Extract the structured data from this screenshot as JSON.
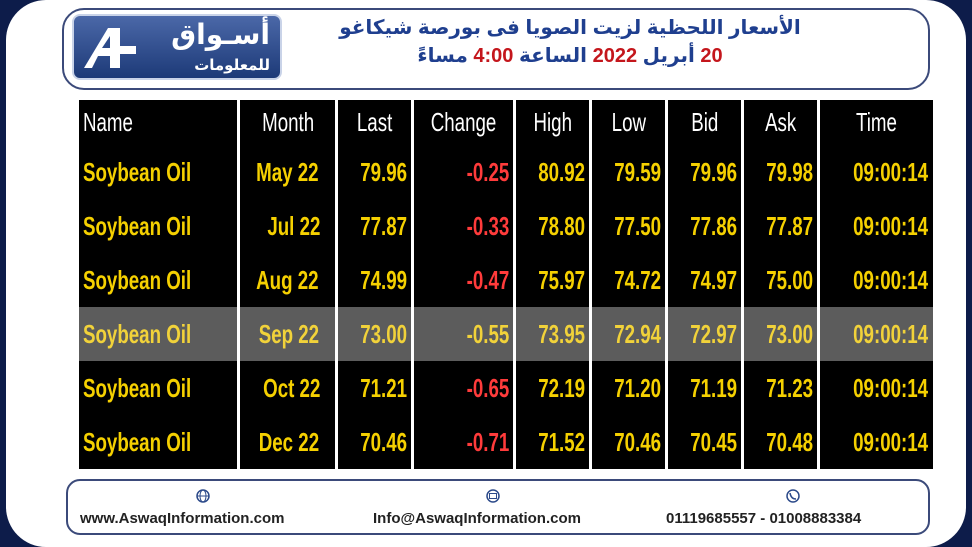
{
  "header": {
    "logo_title": "أسـواق",
    "logo_subtitle": "للمعلومات",
    "title": "الأسعار اللحظية لزيت الصويا فى بورصة شيكاغو",
    "subtitle": [
      "20",
      "أبريل",
      "2022",
      "الساعة",
      "4:00",
      "مساءً"
    ]
  },
  "table": {
    "columns": [
      "Name",
      "Month",
      "Last",
      "Change",
      "High",
      "Low",
      "Bid",
      "Ask",
      "Time"
    ],
    "rows": [
      [
        "Soybean Oil",
        "May 22",
        "79.96",
        "-0.25",
        "80.92",
        "79.59",
        "79.96",
        "79.98",
        "09:00:14"
      ],
      [
        "Soybean Oil",
        "Jul 22",
        "77.87",
        "-0.33",
        "78.80",
        "77.50",
        "77.86",
        "77.87",
        "09:00:14"
      ],
      [
        "Soybean Oil",
        "Aug 22",
        "74.99",
        "-0.47",
        "75.97",
        "74.72",
        "74.97",
        "75.00",
        "09:00:14"
      ],
      [
        "Soybean Oil",
        "Sep 22",
        "73.00",
        "-0.55",
        "73.95",
        "72.94",
        "72.97",
        "73.00",
        "09:00:14"
      ],
      [
        "Soybean Oil",
        "Oct 22",
        "71.21",
        "-0.65",
        "72.19",
        "71.20",
        "71.19",
        "71.23",
        "09:00:14"
      ],
      [
        "Soybean Oil",
        "Dec 22",
        "70.46",
        "-0.71",
        "71.52",
        "70.46",
        "70.45",
        "70.48",
        "09:00:14"
      ]
    ]
  },
  "footer": {
    "website": "www.AswaqInformation.com",
    "email": "Info@AswaqInformation.com",
    "phone": "01119685557 - 01008883384"
  }
}
